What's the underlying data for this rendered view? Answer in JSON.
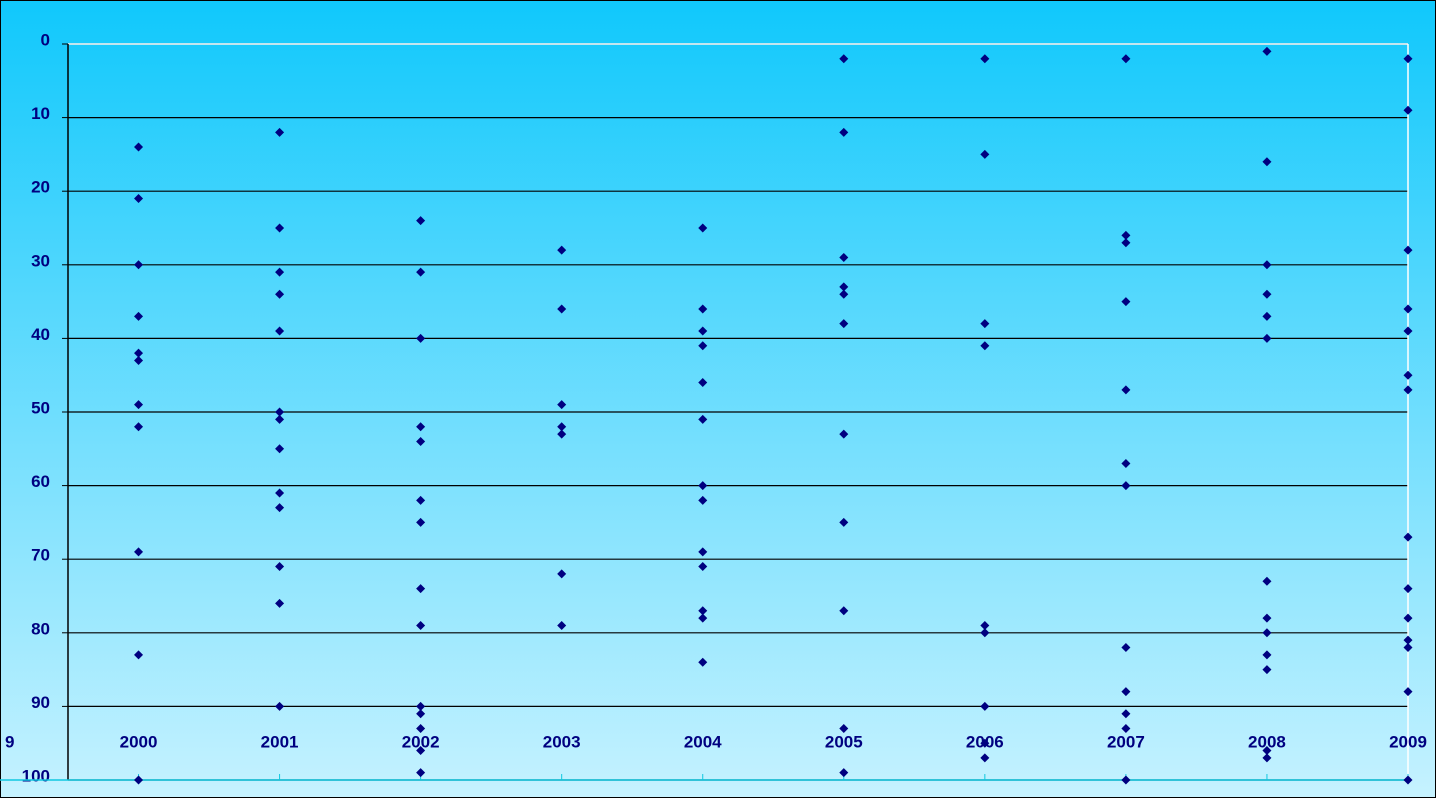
{
  "chart_data": {
    "type": "scatter",
    "color": "#000080",
    "x": [
      2000,
      2000,
      2000,
      2000,
      2000,
      2000,
      2000,
      2000,
      2000,
      2000,
      2000,
      2001,
      2001,
      2001,
      2001,
      2001,
      2001,
      2001,
      2001,
      2001,
      2001,
      2001,
      2001,
      2001,
      2002,
      2002,
      2002,
      2002,
      2002,
      2002,
      2002,
      2002,
      2002,
      2002,
      2002,
      2002,
      2002,
      2002,
      2003,
      2003,
      2003,
      2003,
      2003,
      2003,
      2003,
      2004,
      2004,
      2004,
      2004,
      2004,
      2004,
      2004,
      2004,
      2004,
      2004,
      2004,
      2004,
      2004,
      2005,
      2005,
      2005,
      2005,
      2005,
      2005,
      2005,
      2005,
      2005,
      2005,
      2005,
      2006,
      2006,
      2006,
      2006,
      2006,
      2006,
      2006,
      2006,
      2006,
      2007,
      2007,
      2007,
      2007,
      2007,
      2007,
      2007,
      2007,
      2007,
      2007,
      2007,
      2007,
      2008,
      2008,
      2008,
      2008,
      2008,
      2008,
      2008,
      2008,
      2008,
      2008,
      2008,
      2008,
      2008,
      2009,
      2009,
      2009,
      2009,
      2009,
      2009,
      2009,
      2009,
      2009,
      2009,
      2009,
      2009,
      2009,
      2009
    ],
    "values": [
      14,
      21,
      30,
      37,
      42,
      43,
      49,
      52,
      69,
      83,
      100,
      12,
      25,
      31,
      34,
      39,
      50,
      51,
      55,
      61,
      63,
      71,
      76,
      90,
      24,
      31,
      40,
      52,
      54,
      62,
      65,
      74,
      79,
      90,
      91,
      93,
      96,
      99,
      28,
      36,
      49,
      52,
      53,
      72,
      79,
      25,
      36,
      39,
      41,
      46,
      51,
      60,
      62,
      69,
      71,
      77,
      78,
      84,
      2,
      12,
      29,
      33,
      34,
      38,
      53,
      65,
      77,
      93,
      99,
      2,
      15,
      38,
      41,
      79,
      80,
      90,
      95,
      97,
      2,
      26,
      27,
      35,
      47,
      57,
      60,
      82,
      88,
      91,
      93,
      100,
      1,
      16,
      30,
      34,
      37,
      40,
      73,
      78,
      80,
      83,
      85,
      96,
      97,
      2,
      9,
      28,
      36,
      39,
      45,
      47,
      67,
      74,
      78,
      81,
      82,
      88,
      100
    ],
    "xlim": [
      1999.5,
      2009
    ],
    "xticks": [
      {
        "value": 1999,
        "label": "9"
      },
      2000,
      2001,
      2002,
      2003,
      2004,
      2005,
      2006,
      2007,
      2008,
      2009
    ],
    "ylim": [
      100,
      0
    ],
    "yticks": [
      0,
      10,
      20,
      30,
      40,
      50,
      60,
      70,
      80,
      90,
      100
    ],
    "grid": true
  }
}
